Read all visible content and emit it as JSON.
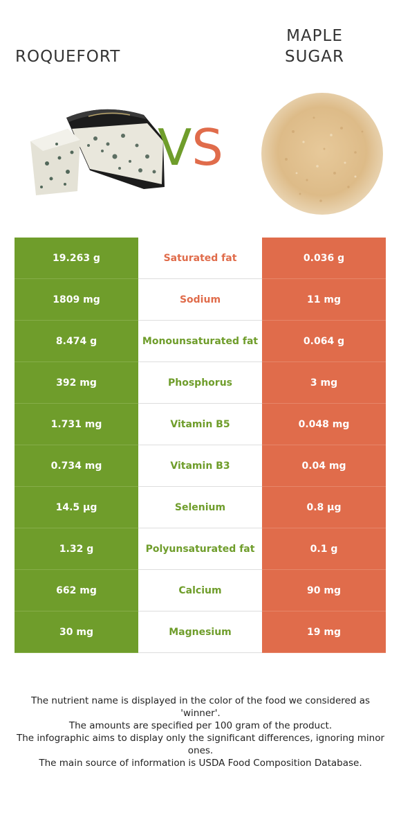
{
  "foods": {
    "left": {
      "title": "ROQUEFORT",
      "color": "#6f9d2b"
    },
    "right": {
      "title_line1": "MAPLE",
      "title_line2": "SUGAR",
      "color": "#e06c4b"
    }
  },
  "vs": {
    "v": "V",
    "s": "S"
  },
  "rows": [
    {
      "left": "19.263 g",
      "nutrient": "Saturated fat",
      "right": "0.036 g",
      "winner": "right"
    },
    {
      "left": "1809 mg",
      "nutrient": "Sodium",
      "right": "11 mg",
      "winner": "right"
    },
    {
      "left": "8.474 g",
      "nutrient": "Monounsaturated fat",
      "right": "0.064 g",
      "winner": "left"
    },
    {
      "left": "392 mg",
      "nutrient": "Phosphorus",
      "right": "3 mg",
      "winner": "left"
    },
    {
      "left": "1.731 mg",
      "nutrient": "Vitamin B5",
      "right": "0.048 mg",
      "winner": "left"
    },
    {
      "left": "0.734 mg",
      "nutrient": "Vitamin B3",
      "right": "0.04 mg",
      "winner": "left"
    },
    {
      "left": "14.5 µg",
      "nutrient": "Selenium",
      "right": "0.8 µg",
      "winner": "left"
    },
    {
      "left": "1.32 g",
      "nutrient": "Polyunsaturated fat",
      "right": "0.1 g",
      "winner": "left"
    },
    {
      "left": "662 mg",
      "nutrient": "Calcium",
      "right": "90 mg",
      "winner": "left"
    },
    {
      "left": "30 mg",
      "nutrient": "Magnesium",
      "right": "19 mg",
      "winner": "left"
    }
  ],
  "footer": {
    "line1": "The nutrient name is displayed in the color of the food we considered as 'winner'.",
    "line2": "The amounts are specified per 100 gram of the product.",
    "line3": "The infographic aims to display only the significant differences, ignoring minor ones.",
    "line4": "The main source of information is USDA Food Composition Database."
  }
}
